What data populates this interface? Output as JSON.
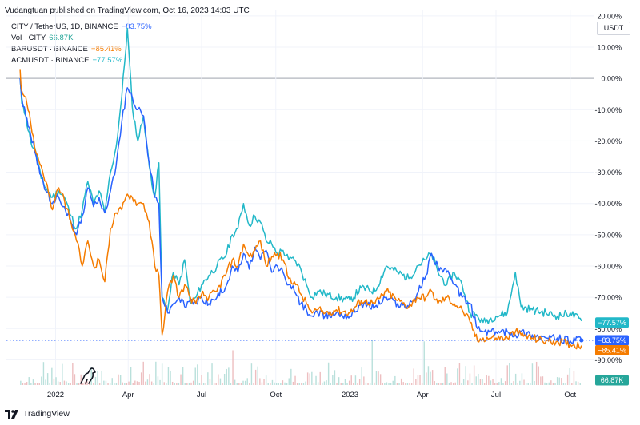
{
  "header": {
    "published": "Vudangtuan published on TradingView.com, Oct 16, 2023 14:03 UTC"
  },
  "legend": [
    {
      "label": "CITY / TetherUS, 1D, BINANCE",
      "value": "−83.75%",
      "color": "#2962ff"
    },
    {
      "label": "Vol · CITY",
      "value": "66.87K",
      "color": "#26a69a"
    },
    {
      "label": "BARUSDT · BINANCE",
      "value": "−85.41%",
      "color": "#f57c00"
    },
    {
      "label": "ACMUSDT · BINANCE",
      "value": "−77.57%",
      "color": "#26c6da"
    }
  ],
  "currency": "USDT",
  "footer": {
    "brand": "TradingView"
  },
  "colors": {
    "city": "#2962ff",
    "bar": "#f57c00",
    "acm": "#22b8c8",
    "volume": "#e8aeb0",
    "volume_up": "#a7d8d2",
    "grid": "#f0f3fa",
    "zero": "#b2b5be"
  },
  "chart_data": {
    "type": "line",
    "ylabel": "",
    "y_unit": "%",
    "ylim": [
      -95,
      22
    ],
    "xlim": [
      "2021-11-01",
      "2023-10-30"
    ],
    "y_ticks": [
      "20.00%",
      "10.00%",
      "0.00%",
      "-10.00%",
      "-20.00%",
      "-30.00%",
      "-40.00%",
      "-50.00%",
      "-60.00%",
      "-70.00%",
      "-80.00%",
      "-90.00%"
    ],
    "y_tick_values": [
      20,
      10,
      0,
      -10,
      -20,
      -30,
      -40,
      -50,
      -60,
      -70,
      -80,
      -90
    ],
    "x_ticks": [
      {
        "date": "2022-01-01",
        "label": "2022"
      },
      {
        "date": "2022-04-01",
        "label": "Apr"
      },
      {
        "date": "2022-07-01",
        "label": "Jul"
      },
      {
        "date": "2022-10-01",
        "label": "Oct"
      },
      {
        "date": "2023-01-01",
        "label": "2023"
      },
      {
        "date": "2023-04-01",
        "label": "Apr"
      },
      {
        "date": "2023-07-01",
        "label": "Jul"
      },
      {
        "date": "2023-10-01",
        "label": "Oct"
      }
    ],
    "series": [
      {
        "name": "ACMUSDT · BINANCE",
        "last_label": "−77.57%",
        "last": -77.57,
        "points": [
          [
            "2021-11-18",
            0
          ],
          [
            "2021-11-20",
            -8
          ],
          [
            "2021-11-25",
            -12
          ],
          [
            "2021-12-01",
            -20
          ],
          [
            "2021-12-08",
            -24
          ],
          [
            "2021-12-14",
            -32
          ],
          [
            "2021-12-20",
            -35
          ],
          [
            "2021-12-28",
            -38
          ],
          [
            "2022-01-05",
            -36
          ],
          [
            "2022-01-12",
            -38
          ],
          [
            "2022-01-20",
            -44
          ],
          [
            "2022-01-27",
            -48
          ],
          [
            "2022-02-03",
            -42
          ],
          [
            "2022-02-10",
            -33
          ],
          [
            "2022-02-17",
            -40
          ],
          [
            "2022-02-24",
            -36
          ],
          [
            "2022-03-03",
            -43
          ],
          [
            "2022-03-10",
            -30
          ],
          [
            "2022-03-17",
            -22
          ],
          [
            "2022-03-24",
            -6
          ],
          [
            "2022-03-31",
            16
          ],
          [
            "2022-04-06",
            -9
          ],
          [
            "2022-04-13",
            -20
          ],
          [
            "2022-04-20",
            -12
          ],
          [
            "2022-04-27",
            -28
          ],
          [
            "2022-05-04",
            -38
          ],
          [
            "2022-05-09",
            -27
          ],
          [
            "2022-05-13",
            -70
          ],
          [
            "2022-05-20",
            -74
          ],
          [
            "2022-05-27",
            -62
          ],
          [
            "2022-06-03",
            -66
          ],
          [
            "2022-06-10",
            -58
          ],
          [
            "2022-06-17",
            -72
          ],
          [
            "2022-06-24",
            -70
          ],
          [
            "2022-07-01",
            -66
          ],
          [
            "2022-07-10",
            -63
          ],
          [
            "2022-07-20",
            -60
          ],
          [
            "2022-08-01",
            -56
          ],
          [
            "2022-08-08",
            -50
          ],
          [
            "2022-08-15",
            -48
          ],
          [
            "2022-08-22",
            -40
          ],
          [
            "2022-08-29",
            -47
          ],
          [
            "2022-09-05",
            -44
          ],
          [
            "2022-09-12",
            -46
          ],
          [
            "2022-09-19",
            -52
          ],
          [
            "2022-09-26",
            -53
          ],
          [
            "2022-10-03",
            -56
          ],
          [
            "2022-10-10",
            -55
          ],
          [
            "2022-10-17",
            -58
          ],
          [
            "2022-10-24",
            -58
          ],
          [
            "2022-11-01",
            -61
          ],
          [
            "2022-11-08",
            -66
          ],
          [
            "2022-11-15",
            -70
          ],
          [
            "2022-11-22",
            -68
          ],
          [
            "2022-12-01",
            -69
          ],
          [
            "2022-12-15",
            -70
          ],
          [
            "2023-01-01",
            -71
          ],
          [
            "2023-01-15",
            -67
          ],
          [
            "2023-02-01",
            -68
          ],
          [
            "2023-02-15",
            -60
          ],
          [
            "2023-03-01",
            -62
          ],
          [
            "2023-03-15",
            -64
          ],
          [
            "2023-03-25",
            -60
          ],
          [
            "2023-04-05",
            -58
          ],
          [
            "2023-04-12",
            -56
          ],
          [
            "2023-04-20",
            -62
          ],
          [
            "2023-05-01",
            -66
          ],
          [
            "2023-05-10",
            -62
          ],
          [
            "2023-05-20",
            -66
          ],
          [
            "2023-05-30",
            -75
          ],
          [
            "2023-06-08",
            -76
          ],
          [
            "2023-06-15",
            -78
          ],
          [
            "2023-07-01",
            -76
          ],
          [
            "2023-07-15",
            -75
          ],
          [
            "2023-07-25",
            -62
          ],
          [
            "2023-08-01",
            -73
          ],
          [
            "2023-08-15",
            -74
          ],
          [
            "2023-09-01",
            -75
          ],
          [
            "2023-09-15",
            -76
          ],
          [
            "2023-10-01",
            -75
          ],
          [
            "2023-10-15",
            -77.57
          ]
        ]
      },
      {
        "name": "CITY / TetherUS",
        "last_label": "−83.75%",
        "last": -83.75,
        "points": [
          [
            "2021-11-18",
            0
          ],
          [
            "2021-11-20",
            -6
          ],
          [
            "2021-11-25",
            -12
          ],
          [
            "2021-12-01",
            -18
          ],
          [
            "2021-12-08",
            -25
          ],
          [
            "2021-12-14",
            -31
          ],
          [
            "2021-12-20",
            -36
          ],
          [
            "2021-12-28",
            -40
          ],
          [
            "2022-01-05",
            -38
          ],
          [
            "2022-01-12",
            -41
          ],
          [
            "2022-01-20",
            -46
          ],
          [
            "2022-01-27",
            -50
          ],
          [
            "2022-02-03",
            -44
          ],
          [
            "2022-02-10",
            -35
          ],
          [
            "2022-02-17",
            -41
          ],
          [
            "2022-02-24",
            -38
          ],
          [
            "2022-03-03",
            -43
          ],
          [
            "2022-03-10",
            -36
          ],
          [
            "2022-03-17",
            -28
          ],
          [
            "2022-03-24",
            -14
          ],
          [
            "2022-03-31",
            -3
          ],
          [
            "2022-04-06",
            -6
          ],
          [
            "2022-04-13",
            -10
          ],
          [
            "2022-04-20",
            -12
          ],
          [
            "2022-04-27",
            -27
          ],
          [
            "2022-05-04",
            -38
          ],
          [
            "2022-05-09",
            -40
          ],
          [
            "2022-05-13",
            -70
          ],
          [
            "2022-05-20",
            -75
          ],
          [
            "2022-05-27",
            -72
          ],
          [
            "2022-06-03",
            -70
          ],
          [
            "2022-06-10",
            -73
          ],
          [
            "2022-06-17",
            -71
          ],
          [
            "2022-06-24",
            -72
          ],
          [
            "2022-07-01",
            -70
          ],
          [
            "2022-07-10",
            -72
          ],
          [
            "2022-07-20",
            -70
          ],
          [
            "2022-08-01",
            -66
          ],
          [
            "2022-08-08",
            -60
          ],
          [
            "2022-08-15",
            -62
          ],
          [
            "2022-08-22",
            -56
          ],
          [
            "2022-08-29",
            -61
          ],
          [
            "2022-09-05",
            -54
          ],
          [
            "2022-09-12",
            -58
          ],
          [
            "2022-09-19",
            -55
          ],
          [
            "2022-09-26",
            -62
          ],
          [
            "2022-10-03",
            -60
          ],
          [
            "2022-10-10",
            -62
          ],
          [
            "2022-10-17",
            -66
          ],
          [
            "2022-10-24",
            -68
          ],
          [
            "2022-11-01",
            -72
          ],
          [
            "2022-11-08",
            -74
          ],
          [
            "2022-11-15",
            -76
          ],
          [
            "2022-11-22",
            -75
          ],
          [
            "2022-12-01",
            -76
          ],
          [
            "2022-12-15",
            -75
          ],
          [
            "2023-01-01",
            -76
          ],
          [
            "2023-01-15",
            -72
          ],
          [
            "2023-02-01",
            -73
          ],
          [
            "2023-02-15",
            -70
          ],
          [
            "2023-03-01",
            -72
          ],
          [
            "2023-03-15",
            -73
          ],
          [
            "2023-03-25",
            -69
          ],
          [
            "2023-04-05",
            -63
          ],
          [
            "2023-04-12",
            -56
          ],
          [
            "2023-04-20",
            -60
          ],
          [
            "2023-05-01",
            -62
          ],
          [
            "2023-05-10",
            -66
          ],
          [
            "2023-05-20",
            -70
          ],
          [
            "2023-05-30",
            -72
          ],
          [
            "2023-06-08",
            -80
          ],
          [
            "2023-06-15",
            -81
          ],
          [
            "2023-07-01",
            -81
          ],
          [
            "2023-07-15",
            -81
          ],
          [
            "2023-07-25",
            -82
          ],
          [
            "2023-08-01",
            -81
          ],
          [
            "2023-08-15",
            -82
          ],
          [
            "2023-09-01",
            -83
          ],
          [
            "2023-09-15",
            -83
          ],
          [
            "2023-10-01",
            -84
          ],
          [
            "2023-10-15",
            -83.75
          ]
        ]
      },
      {
        "name": "BARUSDT · BINANCE",
        "last_label": "−85.41%",
        "last": -85.41,
        "points": [
          [
            "2021-11-18",
            3
          ],
          [
            "2021-11-20",
            -4
          ],
          [
            "2021-11-25",
            -6
          ],
          [
            "2021-12-01",
            -14
          ],
          [
            "2021-12-08",
            -24
          ],
          [
            "2021-12-14",
            -28
          ],
          [
            "2021-12-20",
            -33
          ],
          [
            "2021-12-28",
            -42
          ],
          [
            "2022-01-05",
            -35
          ],
          [
            "2022-01-12",
            -39
          ],
          [
            "2022-01-20",
            -46
          ],
          [
            "2022-01-27",
            -52
          ],
          [
            "2022-02-03",
            -60
          ],
          [
            "2022-02-10",
            -52
          ],
          [
            "2022-02-17",
            -60
          ],
          [
            "2022-02-24",
            -58
          ],
          [
            "2022-03-03",
            -65
          ],
          [
            "2022-03-10",
            -48
          ],
          [
            "2022-03-17",
            -43
          ],
          [
            "2022-03-24",
            -42
          ],
          [
            "2022-03-31",
            -37
          ],
          [
            "2022-04-06",
            -38
          ],
          [
            "2022-04-13",
            -40
          ],
          [
            "2022-04-20",
            -40
          ],
          [
            "2022-04-27",
            -46
          ],
          [
            "2022-05-04",
            -60
          ],
          [
            "2022-05-09",
            -63
          ],
          [
            "2022-05-13",
            -82
          ],
          [
            "2022-05-20",
            -68
          ],
          [
            "2022-05-27",
            -63
          ],
          [
            "2022-06-03",
            -70
          ],
          [
            "2022-06-10",
            -66
          ],
          [
            "2022-06-17",
            -70
          ],
          [
            "2022-06-24",
            -72
          ],
          [
            "2022-07-01",
            -69
          ],
          [
            "2022-07-10",
            -70
          ],
          [
            "2022-07-20",
            -68
          ],
          [
            "2022-08-01",
            -62
          ],
          [
            "2022-08-08",
            -58
          ],
          [
            "2022-08-15",
            -60
          ],
          [
            "2022-08-22",
            -53
          ],
          [
            "2022-08-29",
            -57
          ],
          [
            "2022-09-05",
            -55
          ],
          [
            "2022-09-12",
            -52
          ],
          [
            "2022-09-19",
            -60
          ],
          [
            "2022-09-26",
            -57
          ],
          [
            "2022-10-03",
            -56
          ],
          [
            "2022-10-10",
            -58
          ],
          [
            "2022-10-17",
            -64
          ],
          [
            "2022-10-24",
            -65
          ],
          [
            "2022-11-01",
            -69
          ],
          [
            "2022-11-08",
            -72
          ],
          [
            "2022-11-15",
            -75
          ],
          [
            "2022-11-22",
            -74
          ],
          [
            "2022-12-01",
            -75
          ],
          [
            "2022-12-15",
            -74
          ],
          [
            "2023-01-01",
            -75
          ],
          [
            "2023-01-15",
            -71
          ],
          [
            "2023-02-01",
            -72
          ],
          [
            "2023-02-15",
            -68
          ],
          [
            "2023-03-01",
            -71
          ],
          [
            "2023-03-15",
            -73
          ],
          [
            "2023-03-25",
            -70
          ],
          [
            "2023-04-05",
            -70
          ],
          [
            "2023-04-12",
            -68
          ],
          [
            "2023-04-20",
            -72
          ],
          [
            "2023-05-01",
            -70
          ],
          [
            "2023-05-10",
            -72
          ],
          [
            "2023-05-20",
            -74
          ],
          [
            "2023-05-30",
            -78
          ],
          [
            "2023-06-08",
            -84
          ],
          [
            "2023-06-15",
            -83
          ],
          [
            "2023-07-01",
            -83
          ],
          [
            "2023-07-15",
            -83
          ],
          [
            "2023-07-25",
            -81
          ],
          [
            "2023-08-01",
            -82
          ],
          [
            "2023-08-15",
            -83
          ],
          [
            "2023-09-01",
            -84
          ],
          [
            "2023-09-15",
            -84
          ],
          [
            "2023-10-01",
            -85
          ],
          [
            "2023-10-15",
            -85.41
          ]
        ]
      }
    ],
    "volume": {
      "name": "Vol · CITY",
      "last_label": "66.87K"
    }
  }
}
